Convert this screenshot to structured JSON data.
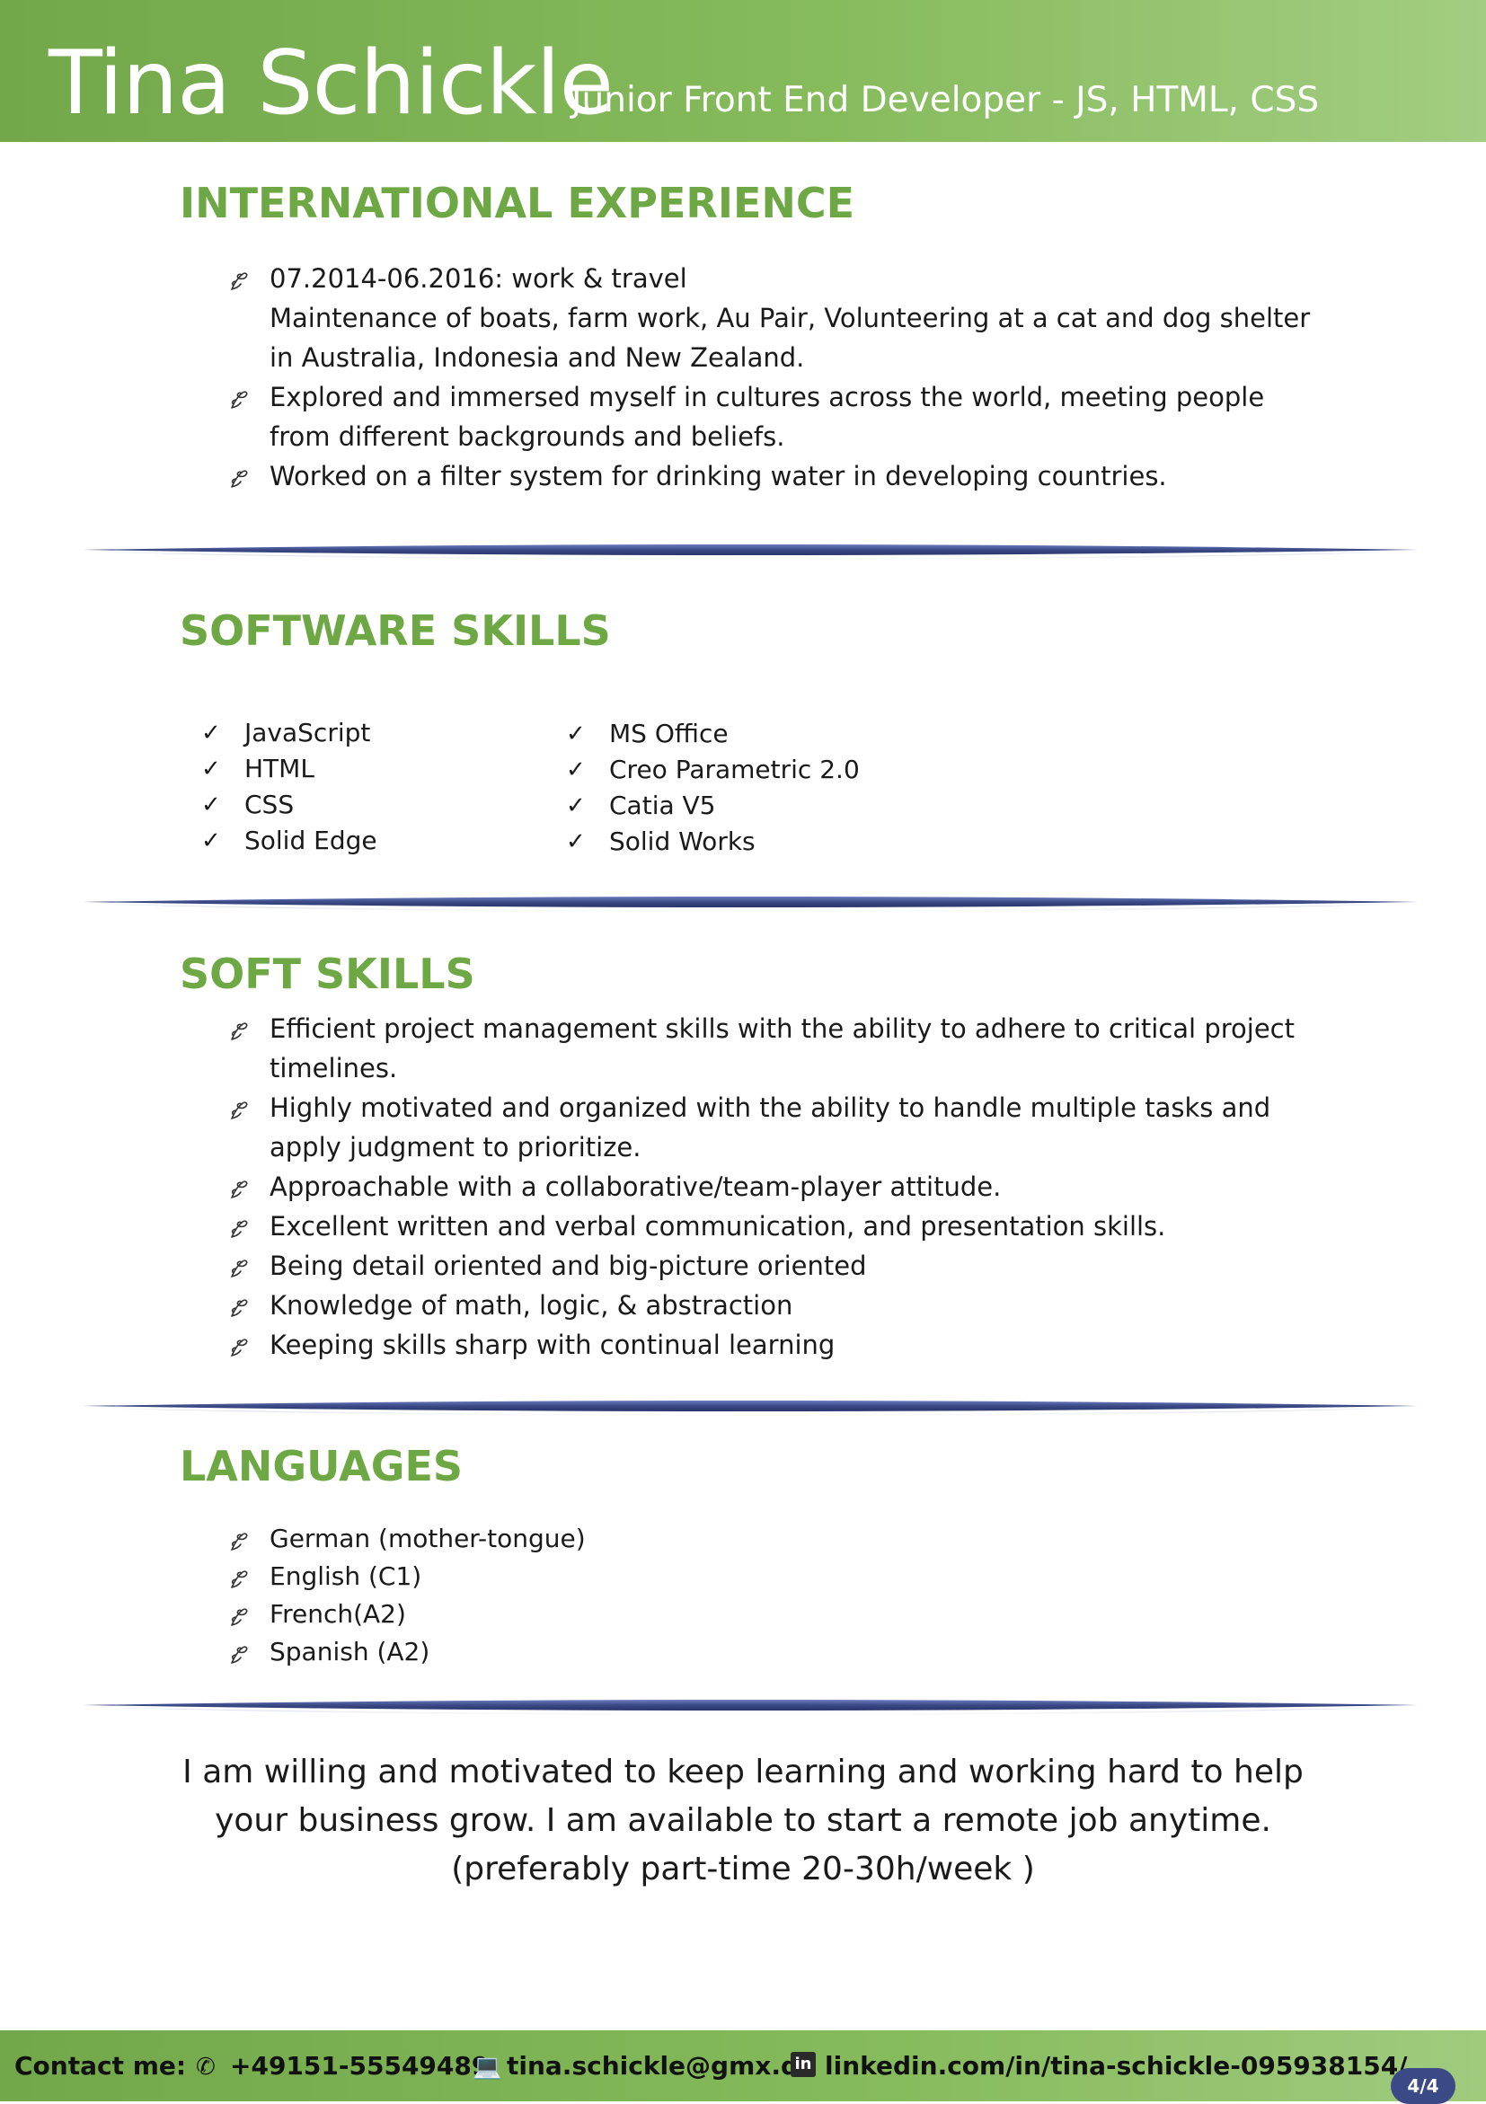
{
  "header": {
    "name": "Tina Schickle",
    "subtitle": "Junior Front End Developer - JS, HTML, CSS"
  },
  "international_experience": {
    "title": "INTERNATIONAL EXPERIENCE",
    "items": [
      {
        "line1": "07.2014-06.2016: work & travel",
        "line2": "Maintenance of boats, farm work, Au Pair, Volunteering at a cat and dog shelter",
        "line3": "in Australia, Indonesia and New Zealand."
      },
      {
        "line1": "Explored and immersed myself in cultures across the world, meeting people",
        "line2": "from different backgrounds and beliefs."
      },
      {
        "line1": "Worked on a filter system for drinking water in developing countries."
      }
    ]
  },
  "software_skills": {
    "title": "SOFTWARE SKILLS",
    "col1": [
      "JavaScript",
      "HTML",
      "CSS",
      "Solid Edge"
    ],
    "col2": [
      "MS Office",
      "Creo Parametric 2.0",
      "Catia V5",
      "Solid Works"
    ]
  },
  "soft_skills": {
    "title": "SOFT SKILLS",
    "items": [
      {
        "line1": "Efficient project management skills with the ability to adhere to critical project",
        "line2": "timelines."
      },
      {
        "line1": "Highly motivated and organized with the ability to handle multiple tasks and",
        "line2": "apply judgment to prioritize."
      },
      {
        "line1": "Approachable with a collaborative/team-player attitude."
      },
      {
        "line1": "Excellent written and verbal communication, and presentation skills."
      },
      {
        "line1": "Being detail oriented and big-picture oriented"
      },
      {
        "line1": "Knowledge of math, logic, & abstraction"
      },
      {
        "line1": "Keeping skills sharp with continual learning"
      }
    ]
  },
  "languages": {
    "title": "LANGUAGES",
    "items": [
      "German (mother-tongue)",
      "English (C1)",
      "French(A2)",
      "Spanish (A2)"
    ]
  },
  "closing": {
    "line1": "I am willing and motivated to keep learning and working hard to help",
    "line2": "your business grow. I am available to start a remote job anytime.",
    "line3": "(preferably part-time 20-30h/week )"
  },
  "footer": {
    "contact_label": "Contact me:",
    "phone": "+49151-55549489",
    "email": "tina.schickle@gmx.de",
    "linkedin": "linkedin.com/in/tina-schickle-095938154/",
    "page": "4/4",
    "icons": [
      "phone-icon",
      "laptop-icon",
      "linkedin-icon"
    ]
  },
  "colors": {
    "header_green": "#72a84a",
    "section_title_green": "#6ea845",
    "divider_blue": "#3b4a86",
    "page_badge": "#3b4a86"
  }
}
